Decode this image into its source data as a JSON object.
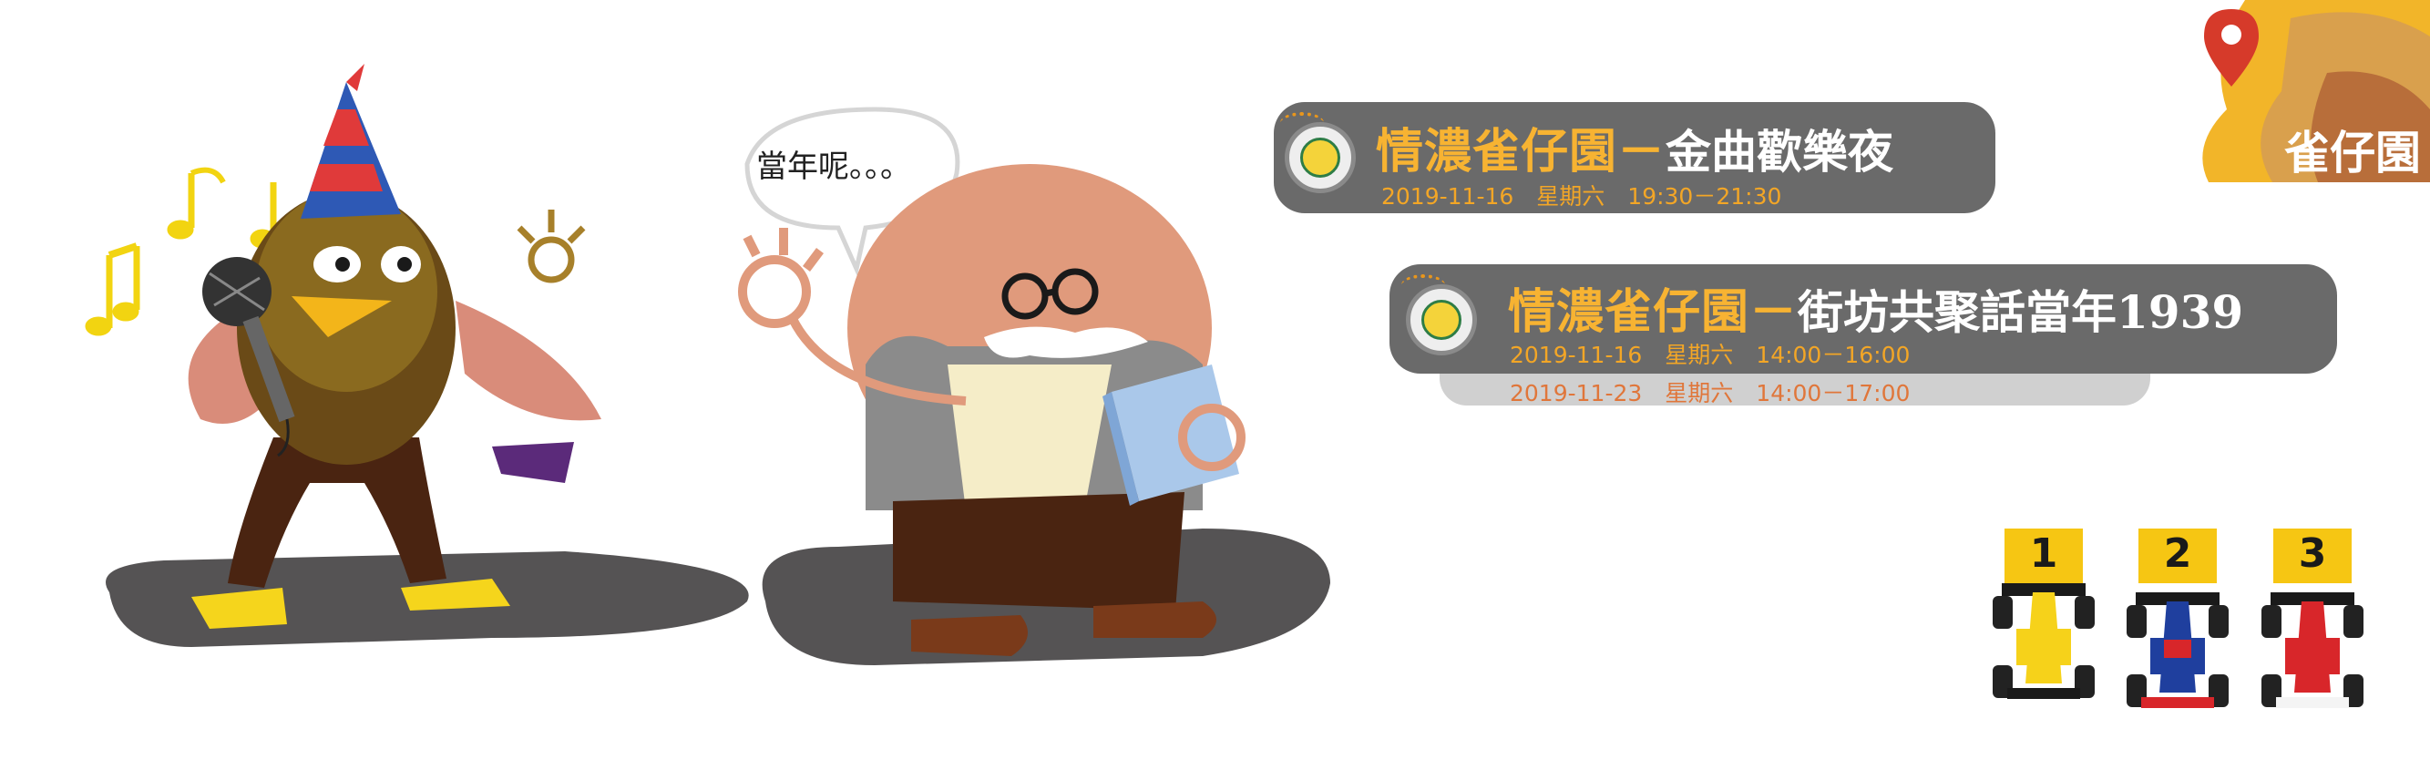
{
  "logo": {
    "text": "雀仔園"
  },
  "speech_bubble": {
    "text": "當年呢。。。"
  },
  "events": [
    {
      "title_highlight": "情濃雀仔園－",
      "title_rest": "金曲歡樂夜",
      "dates": [
        "2019-11-16　星期六　19:30－21:30"
      ]
    },
    {
      "title_highlight": "情濃雀仔園－",
      "title_rest": "街坊共聚話當年1939",
      "dates": [
        "2019-11-16　星期六　14:00－16:00",
        "2019-11-23　星期六　14:00－17:00"
      ]
    }
  ],
  "ranking": {
    "places": [
      {
        "label": "1",
        "color": "#f6d21a"
      },
      {
        "label": "2",
        "color": "#1f3f9e"
      },
      {
        "label": "3",
        "color": "#d8262a"
      }
    ]
  },
  "colors": {
    "banner_gray": "#6a6a6a",
    "title_yellow": "#f7b332",
    "accent_orange": "#e0763a",
    "shadow_gray": "#555354"
  },
  "icons": [
    "music-note-icon",
    "microphone-icon",
    "party-hat-icon",
    "glasses-icon",
    "book-icon",
    "map-pin-icon",
    "trophy-badge-icon"
  ]
}
